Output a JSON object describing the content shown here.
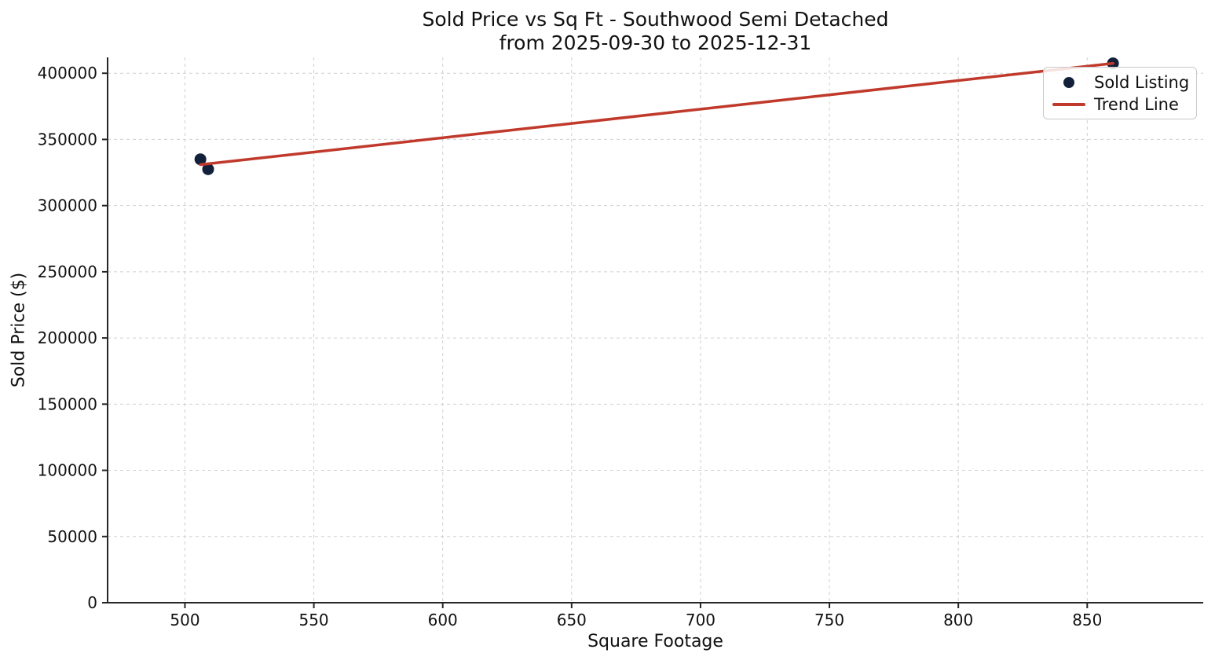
{
  "title": {
    "line1": "Sold Price vs Sq Ft - Southwood Semi Detached",
    "line2": "from 2025-09-30 to 2025-12-31"
  },
  "chart_data": {
    "type": "scatter",
    "title": "Sold Price vs Sq Ft - Southwood Semi Detached from 2025-09-30 to 2025-12-31",
    "xlabel": "Square Footage",
    "ylabel": "Sold Price ($)",
    "xlim": [
      470,
      895
    ],
    "ylim": [
      0,
      412000
    ],
    "xticks": [
      500,
      550,
      600,
      650,
      700,
      750,
      800,
      850
    ],
    "yticks": [
      0,
      50000,
      100000,
      150000,
      200000,
      250000,
      300000,
      350000,
      400000
    ],
    "grid": true,
    "grid_style": "dashed",
    "legend_position": "upper right",
    "series": [
      {
        "name": "Sold Listing",
        "type": "scatter",
        "color": "#12203a",
        "points": [
          {
            "x": 506,
            "y": 335000
          },
          {
            "x": 509,
            "y": 327500
          },
          {
            "x": 860,
            "y": 407500
          }
        ]
      },
      {
        "name": "Trend Line",
        "type": "line",
        "color": "#c0392b",
        "fit": "linear-regression-of-scatter-points",
        "x_range": [
          506,
          860
        ]
      }
    ]
  },
  "colors": {
    "scatter": "#12203a",
    "trend": "#c0392b",
    "grid": "#d0d0d0",
    "axis": "#262626",
    "text": "#111111",
    "legend_border": "#c9c9c9"
  }
}
